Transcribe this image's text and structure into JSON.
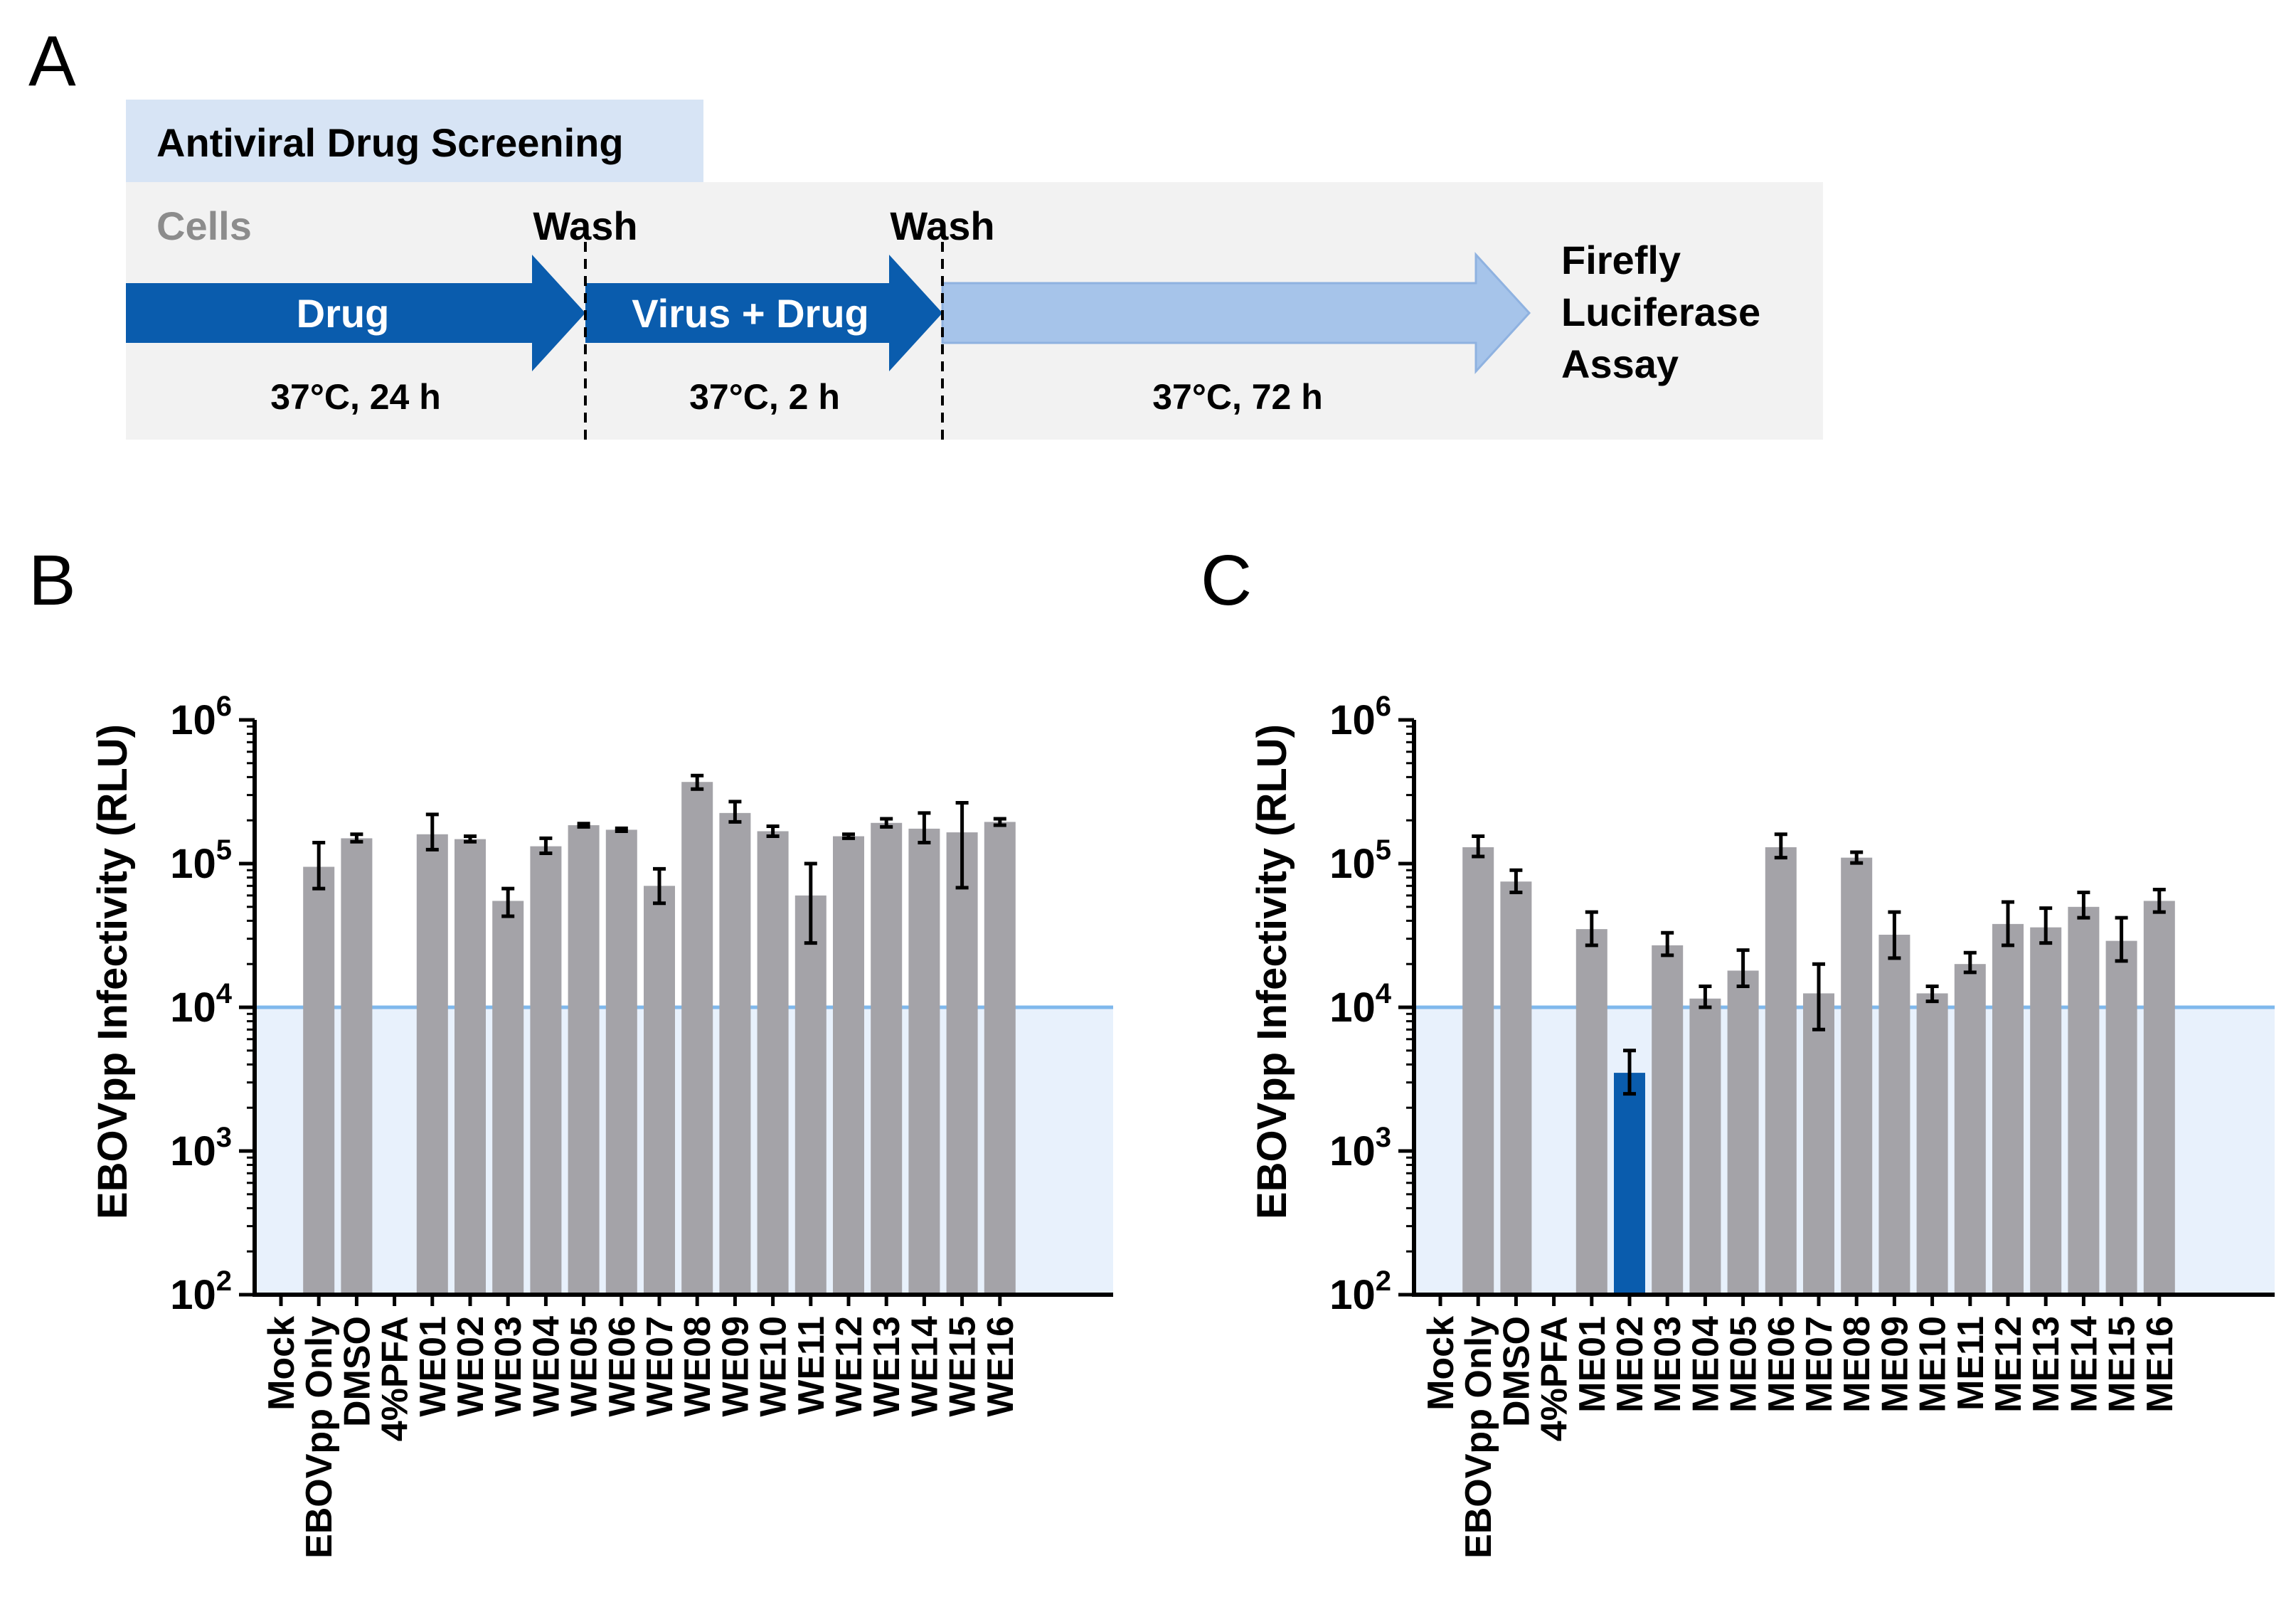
{
  "panels": {
    "a": "A",
    "b": "B",
    "c": "C"
  },
  "schematic": {
    "title": "Antiviral Drug Screening",
    "cells_label": "Cells",
    "wash1": "Wash",
    "wash2": "Wash",
    "step1": "Drug",
    "step2": "Virus + Drug",
    "cond1": "37°C, 24 h",
    "cond2": "37°C, 2 h",
    "cond3": "37°C, 72 h",
    "assay": [
      "Firefly",
      "Luciferase",
      "Assay"
    ],
    "colors": {
      "dark_arrow": "#0a5cad",
      "light_arrow": "#a6c4ea",
      "bg": "#f2f2f2",
      "title_bg": "#d7e4f5"
    }
  },
  "chart_data": [
    {
      "type": "bar",
      "id": "B",
      "ylabel": "EBOVpp Infectivity (RLU)",
      "yscale": "log",
      "ylim": [
        100,
        1000000
      ],
      "yticks": [
        2,
        3,
        4,
        5,
        6
      ],
      "threshold": 10000,
      "categories": [
        "Mock",
        "EBOVpp Only",
        "DMSO",
        "4%PFA",
        "WE01",
        "WE02",
        "WE03",
        "WE04",
        "WE05",
        "WE06",
        "WE07",
        "WE08",
        "WE09",
        "WE10",
        "WE11",
        "WE12",
        "WE13",
        "WE14",
        "WE15",
        "WE16"
      ],
      "values": [
        null,
        95000,
        150000,
        null,
        160000,
        148000,
        55000,
        132000,
        185000,
        172000,
        70000,
        370000,
        225000,
        168000,
        60000,
        155000,
        192000,
        175000,
        165000,
        195000
      ],
      "err_low": [
        null,
        67000,
        142000,
        null,
        125000,
        142000,
        43000,
        118000,
        180000,
        168000,
        53000,
        330000,
        195000,
        155000,
        28000,
        150000,
        180000,
        140000,
        68000,
        185000
      ],
      "err_high": [
        null,
        140000,
        160000,
        null,
        220000,
        155000,
        67000,
        150000,
        190000,
        176000,
        92000,
        410000,
        270000,
        182000,
        100000,
        160000,
        205000,
        225000,
        265000,
        205000
      ],
      "highlight": [],
      "colors": {
        "bar": "#a4a3a8",
        "highlight": "#0a5cad",
        "threshold": "#7fb8ec",
        "fill": "#e8f1fc"
      }
    },
    {
      "type": "bar",
      "id": "C",
      "ylabel": "EBOVpp Infectivity (RLU)",
      "yscale": "log",
      "ylim": [
        100,
        1000000
      ],
      "yticks": [
        2,
        3,
        4,
        5,
        6
      ],
      "threshold": 10000,
      "categories": [
        "Mock",
        "EBOVpp Only",
        "DMSO",
        "4%PFA",
        "ME01",
        "ME02",
        "ME03",
        "ME04",
        "ME05",
        "ME06",
        "ME07",
        "ME08",
        "ME09",
        "ME10",
        "ME11",
        "ME12",
        "ME13",
        "ME14",
        "ME15",
        "ME16"
      ],
      "values": [
        null,
        130000,
        75000,
        null,
        35000,
        3500,
        27000,
        11500,
        18000,
        130000,
        12500,
        110000,
        32000,
        12500,
        20000,
        38000,
        36000,
        50000,
        29000,
        55000
      ],
      "err_low": [
        null,
        112000,
        63000,
        null,
        27000,
        2500,
        23000,
        10000,
        14000,
        110000,
        7000,
        101000,
        22000,
        11000,
        17500,
        27000,
        28000,
        42000,
        21000,
        46000
      ],
      "err_high": [
        null,
        155000,
        90000,
        null,
        46000,
        5000,
        33000,
        14000,
        25000,
        160000,
        20000,
        120000,
        46000,
        14000,
        24000,
        54000,
        49000,
        63000,
        42000,
        66000
      ],
      "highlight": [
        5
      ],
      "colors": {
        "bar": "#a4a3a8",
        "highlight": "#0a5cad",
        "threshold": "#7fb8ec",
        "fill": "#e8f1fc"
      }
    }
  ]
}
